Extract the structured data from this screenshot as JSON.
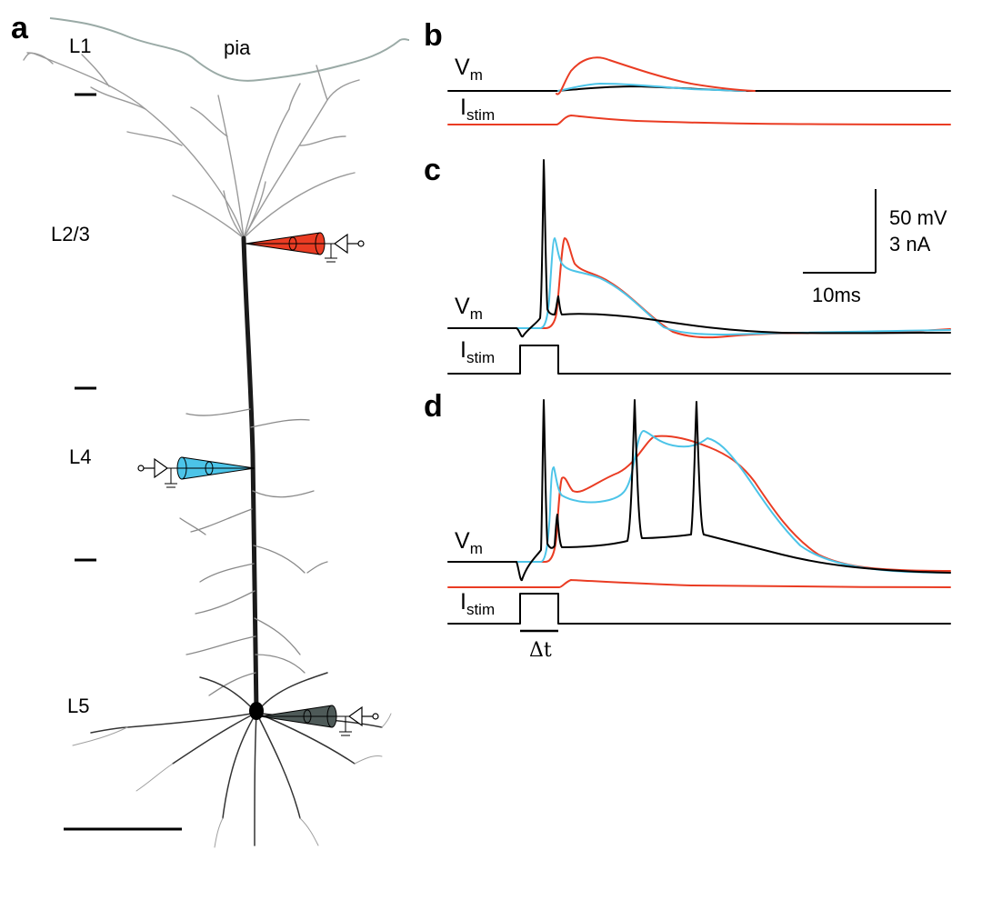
{
  "colors": {
    "tuft": "#ea3c23",
    "trunk": "#4cc4e8",
    "soma": "#000000",
    "soma_pipette": "#4e5a58",
    "pia": "#9aaaa6"
  },
  "panel_a": {
    "letter": "a",
    "pia_label": "pia",
    "layers": [
      "L1",
      "L2/3",
      "L4",
      "L5"
    ]
  },
  "panel_b": {
    "letter": "b",
    "vm_label": "V",
    "vm_sub": "m",
    "istim_label": "I",
    "istim_sub": "stim"
  },
  "panel_c": {
    "letter": "c",
    "vm_label": "V",
    "vm_sub": "m",
    "istim_label": "I",
    "istim_sub": "stim",
    "scale_v": "50 mV",
    "scale_i": "3 nA",
    "scale_t": "10ms"
  },
  "panel_d": {
    "letter": "d",
    "vm_label": "V",
    "vm_sub": "m",
    "istim_label": "I",
    "istim_sub": "stim",
    "delta_t": "Δt"
  }
}
